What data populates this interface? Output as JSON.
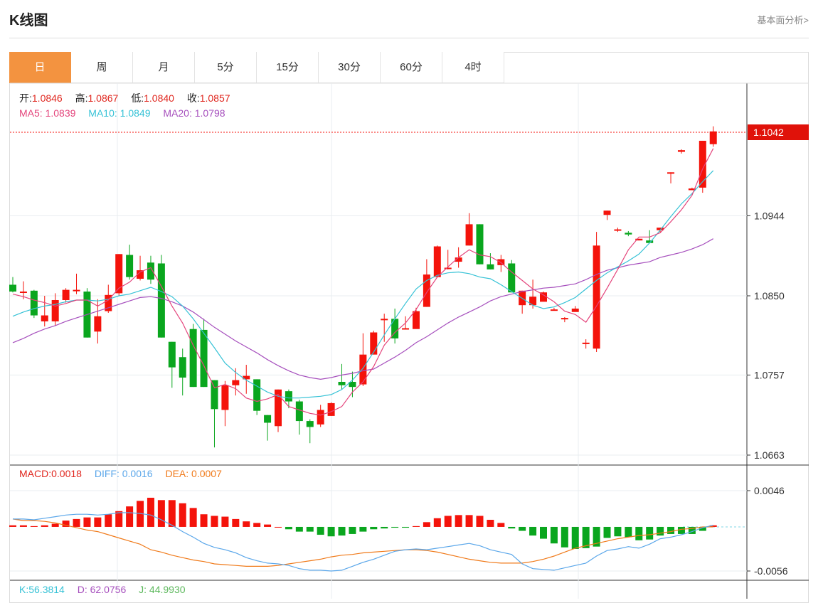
{
  "page": {
    "title": "K线图",
    "top_link": "基本面分析>"
  },
  "tabs": [
    "日",
    "周",
    "月",
    "5分",
    "15分",
    "30分",
    "60分",
    "4时"
  ],
  "active_tab": 0,
  "ohlc": {
    "open_label": "开:",
    "open": "1.0846",
    "high_label": "高:",
    "high": "1.0867",
    "low_label": "低:",
    "low": "1.0840",
    "close_label": "收:",
    "close": "1.0857"
  },
  "ma": {
    "ma5_label": "MA5:",
    "ma5": "1.0839",
    "ma10_label": "MA10:",
    "ma10": "1.0849",
    "ma20_label": "MA20:",
    "ma20": "1.0798"
  },
  "macd_info": {
    "macd_label": "MACD:",
    "macd": "0.0018",
    "diff_label": "DIFF:",
    "diff": "0.0016",
    "dea_label": "DEA:",
    "dea": "0.0007"
  },
  "kdj_info": {
    "k_label": "K:",
    "k": "56.3814",
    "d_label": "D:",
    "d": "62.0756",
    "j_label": "J:",
    "j": "44.9930"
  },
  "current_price": "1.1042",
  "colors": {
    "up": "#f4130b",
    "down": "#0aa61e",
    "ma5": "#e4457c",
    "ma10": "#36c2d6",
    "ma20": "#a64fbd",
    "diff": "#5ba7ea",
    "dea": "#f07a1a",
    "accent": "#f39340",
    "k": "#36c2d6",
    "d": "#a64fbd",
    "j": "#5cb85c"
  },
  "chart_data": {
    "type": "candlestick",
    "price_ticks": [
      "1.1042",
      "1.0944",
      "1.0850",
      "1.0757",
      "1.0663"
    ],
    "price_ylim": [
      1.0663,
      1.1042
    ],
    "macd_ticks": [
      "0.0046",
      "-0.0056"
    ],
    "macd_ylim": [
      -0.0056,
      0.0046
    ],
    "candles": [
      [
        1.0863,
        1.0855,
        1.0872,
        1.0854
      ],
      [
        1.0855,
        1.0855,
        1.0867,
        1.0846
      ],
      [
        1.0856,
        1.0827,
        1.0857,
        1.0824
      ],
      [
        1.082,
        1.0827,
        1.085,
        1.0814
      ],
      [
        1.082,
        1.0845,
        1.0853,
        1.0815
      ],
      [
        1.0845,
        1.0857,
        1.0859,
        1.0842
      ],
      [
        1.0856,
        1.0857,
        1.0876,
        1.0852
      ],
      [
        1.0855,
        1.0801,
        1.0859,
        1.0801
      ],
      [
        1.0808,
        1.0826,
        1.0846,
        1.0794
      ],
      [
        1.0832,
        1.0851,
        1.0863,
        1.083
      ],
      [
        1.0853,
        1.0899,
        1.0899,
        1.085
      ],
      [
        1.0898,
        1.0872,
        1.091,
        1.0869
      ],
      [
        1.087,
        1.088,
        1.0897,
        1.0868
      ],
      [
        1.0889,
        1.0869,
        1.0897,
        1.0864
      ],
      [
        1.0888,
        1.0801,
        1.0898,
        1.0801
      ],
      [
        1.0796,
        1.0766,
        1.0796,
        1.0742
      ],
      [
        1.0778,
        1.0754,
        1.0788,
        1.0733
      ],
      [
        1.0811,
        1.0743,
        1.0817,
        1.0743
      ],
      [
        1.081,
        1.0743,
        1.0823,
        1.0743
      ],
      [
        1.0751,
        1.0717,
        1.0751,
        1.0672
      ],
      [
        1.0716,
        1.0745,
        1.075,
        1.0697
      ],
      [
        1.0745,
        1.0751,
        1.0765,
        1.0733
      ],
      [
        1.0752,
        1.0756,
        1.0769,
        1.0735
      ],
      [
        1.0752,
        1.0715,
        1.0752,
        1.071
      ],
      [
        1.071,
        1.0701,
        1.071,
        1.068
      ],
      [
        1.0697,
        1.074,
        1.074,
        1.069
      ],
      [
        1.0738,
        1.0726,
        1.074,
        1.0718
      ],
      [
        1.0726,
        1.0703,
        1.0728,
        1.0687
      ],
      [
        1.0703,
        1.0696,
        1.0705,
        1.0677
      ],
      [
        1.0699,
        1.0716,
        1.0722,
        1.0696
      ],
      [
        1.0709,
        1.0724,
        1.0725,
        1.0709
      ],
      [
        1.0749,
        1.0745,
        1.077,
        1.074
      ],
      [
        1.0749,
        1.0743,
        1.0761,
        1.0731
      ],
      [
        1.0746,
        1.0781,
        1.0806,
        1.0744
      ],
      [
        1.0781,
        1.0807,
        1.0809,
        1.0795
      ],
      [
        1.0822,
        1.0823,
        1.0829,
        1.0796
      ],
      [
        1.0823,
        1.08,
        1.0835,
        1.0794
      ],
      [
        1.0812,
        1.0812,
        1.0826,
        1.0811
      ],
      [
        1.0811,
        1.0832,
        1.0836,
        1.0812
      ],
      [
        1.0837,
        1.0875,
        1.0893,
        1.0837
      ],
      [
        1.0872,
        1.0908,
        1.0909,
        1.0872
      ],
      [
        1.0883,
        1.0883,
        1.0904,
        1.0881
      ],
      [
        1.089,
        1.0895,
        1.0907,
        1.0883
      ],
      [
        1.0909,
        1.0934,
        1.0947,
        1.0909
      ],
      [
        1.0934,
        1.0887,
        1.0934,
        1.0887
      ],
      [
        1.0887,
        1.0881,
        1.09,
        1.0881
      ],
      [
        1.0886,
        1.0893,
        1.0898,
        1.0878
      ],
      [
        1.0888,
        1.0854,
        1.0892,
        1.0854
      ],
      [
        1.0839,
        1.0856,
        1.0856,
        1.0829
      ],
      [
        1.0839,
        1.0849,
        1.0869,
        1.0835
      ],
      [
        1.0843,
        1.0854,
        1.0855,
        1.0846
      ],
      [
        1.0834,
        1.0834,
        1.0836,
        1.0833
      ],
      [
        1.0823,
        1.0824,
        1.0825,
        1.0819
      ],
      [
        1.0831,
        1.0835,
        1.0838,
        1.0832
      ],
      [
        1.0794,
        1.0795,
        1.0799,
        1.0788
      ],
      [
        1.0788,
        1.0909,
        1.0925,
        1.0784
      ],
      [
        1.0945,
        1.095,
        1.095,
        1.0939
      ],
      [
        1.0927,
        1.0928,
        1.093,
        1.0925
      ],
      [
        1.0924,
        1.0922,
        1.0926,
        1.092
      ],
      [
        1.0915,
        1.0917,
        1.0917,
        1.0915
      ],
      [
        1.0915,
        1.0912,
        1.0927,
        1.0912
      ],
      [
        1.0927,
        1.093,
        1.093,
        1.0924
      ],
      [
        1.0994,
        1.0995,
        1.0995,
        1.0982
      ],
      [
        1.1019,
        1.1021,
        1.1022,
        1.1017
      ],
      [
        1.0974,
        1.0976,
        1.0977,
        1.0974
      ],
      [
        1.0977,
        1.1032,
        1.1032,
        1.0971
      ],
      [
        1.1028,
        1.1043,
        1.1049,
        1.1025
      ]
    ],
    "ma5": [
      1.0852,
      1.0849,
      1.0845,
      1.0842,
      1.0838,
      1.0841,
      1.0845,
      1.0845,
      1.0838,
      1.0845,
      1.0859,
      1.0866,
      1.0878,
      1.0883,
      1.0861,
      1.0838,
      1.0818,
      1.0792,
      1.0768,
      1.0742,
      1.0746,
      1.0741,
      1.073,
      1.0726,
      1.0729,
      1.0734,
      1.072,
      1.0716,
      1.0712,
      1.071,
      1.0714,
      1.072,
      1.0737,
      1.0749,
      1.0767,
      1.0792,
      1.0807,
      1.0818,
      1.0834,
      1.0854,
      1.0872,
      1.0884,
      1.0895,
      1.0904,
      1.0898,
      1.0896,
      1.0889,
      1.0878,
      1.0868,
      1.0858,
      1.0851,
      1.0843,
      1.0832,
      1.0828,
      1.0819,
      1.0838,
      1.0859,
      1.0881,
      1.0904,
      1.0919,
      1.0919,
      1.0924,
      1.0937,
      1.0951,
      1.0968,
      1.0999,
      1.1023
    ],
    "ma10": [
      1.0826,
      1.0831,
      1.0835,
      1.0838,
      1.084,
      1.0843,
      1.0845,
      1.0845,
      1.0844,
      1.0846,
      1.085,
      1.0852,
      1.0856,
      1.086,
      1.0855,
      1.0849,
      1.0838,
      1.0823,
      1.0806,
      1.0789,
      1.0771,
      1.076,
      1.0751,
      1.0744,
      1.0737,
      1.0732,
      1.073,
      1.073,
      1.0731,
      1.0732,
      1.0734,
      1.074,
      1.0751,
      1.0765,
      1.0784,
      1.0804,
      1.0823,
      1.0841,
      1.0858,
      1.0868,
      1.0874,
      1.0877,
      1.0878,
      1.0876,
      1.0872,
      1.087,
      1.0863,
      1.0855,
      1.0847,
      1.0839,
      1.0835,
      1.0837,
      1.0842,
      1.0848,
      1.0858,
      1.0868,
      1.0877,
      1.0884,
      1.0891,
      1.0899,
      1.0912,
      1.0927,
      1.0943,
      1.0958,
      1.097,
      1.0984,
      1.0997
    ],
    "ma20": [
      1.0795,
      1.08,
      1.0806,
      1.0811,
      1.0815,
      1.082,
      1.0824,
      1.0828,
      1.0832,
      1.0836,
      1.084,
      1.0844,
      1.0848,
      1.0849,
      1.0847,
      1.0843,
      1.0838,
      1.0831,
      1.0822,
      1.0813,
      1.0805,
      1.0797,
      1.079,
      1.0783,
      1.0775,
      1.0768,
      1.0762,
      1.0757,
      1.0754,
      1.0752,
      1.0754,
      1.0757,
      1.0759,
      1.0762,
      1.0764,
      1.0771,
      1.0778,
      1.0786,
      1.0795,
      1.0802,
      1.081,
      1.0818,
      1.0825,
      1.0831,
      1.0837,
      1.0844,
      1.0849,
      1.0852,
      1.0855,
      1.0857,
      1.0859,
      1.086,
      1.0862,
      1.0864,
      1.0869,
      1.0875,
      1.088,
      1.0883,
      1.0886,
      1.0888,
      1.089,
      1.0895,
      1.0898,
      1.0901,
      1.0905,
      1.091,
      1.0917
    ],
    "macd_hist": [
      0.0002,
      0.0002,
      0.0001,
      0.0002,
      0.0004,
      0.0008,
      0.001,
      0.0012,
      0.0012,
      0.0016,
      0.002,
      0.0026,
      0.0033,
      0.0037,
      0.0034,
      0.0034,
      0.003,
      0.0024,
      0.0016,
      0.0014,
      0.0013,
      0.001,
      0.0007,
      0.0005,
      0.0003,
      0.0,
      -0.0003,
      -0.0006,
      -0.0006,
      -0.001,
      -0.0012,
      -0.0011,
      -0.0009,
      -0.0006,
      -0.0003,
      -0.0002,
      -0.0001,
      -0.0001,
      0.0001,
      0.0006,
      0.0011,
      0.0014,
      0.0015,
      0.0015,
      0.0014,
      0.0009,
      0.0005,
      -0.0002,
      -0.0005,
      -0.0011,
      -0.0015,
      -0.0021,
      -0.0026,
      -0.0028,
      -0.0027,
      -0.0025,
      -0.0014,
      -0.0012,
      -0.0013,
      -0.0017,
      -0.0016,
      -0.0011,
      -0.0009,
      -0.0009,
      -0.0009,
      -0.0005,
      0.0002
    ],
    "diff": [
      0.001,
      0.001,
      0.0009,
      0.0011,
      0.0013,
      0.0015,
      0.0016,
      0.0016,
      0.0015,
      0.0016,
      0.0018,
      0.0018,
      0.0017,
      0.0015,
      0.0009,
      0.0002,
      -0.0006,
      -0.0013,
      -0.0021,
      -0.0026,
      -0.0029,
      -0.0033,
      -0.0039,
      -0.0043,
      -0.0046,
      -0.0047,
      -0.0049,
      -0.0053,
      -0.0055,
      -0.0055,
      -0.0056,
      -0.0055,
      -0.005,
      -0.0045,
      -0.0041,
      -0.0036,
      -0.0031,
      -0.0029,
      -0.0028,
      -0.0029,
      -0.0027,
      -0.0025,
      -0.0023,
      -0.0021,
      -0.0024,
      -0.0029,
      -0.0032,
      -0.0035,
      -0.0047,
      -0.0053,
      -0.0054,
      -0.0055,
      -0.0052,
      -0.0049,
      -0.0046,
      -0.0037,
      -0.003,
      -0.0028,
      -0.0025,
      -0.0027,
      -0.0022,
      -0.0015,
      -0.0013,
      -0.001,
      -0.0006,
      -0.0001,
      0.0002
    ],
    "dea": [
      0.001,
      0.0008,
      0.0008,
      0.0007,
      0.0005,
      0.0002,
      -0.0001,
      -0.0004,
      -0.0006,
      -0.001,
      -0.0014,
      -0.0018,
      -0.0022,
      -0.0029,
      -0.0032,
      -0.0036,
      -0.0039,
      -0.0042,
      -0.0044,
      -0.0047,
      -0.0048,
      -0.0049,
      -0.005,
      -0.005,
      -0.005,
      -0.0049,
      -0.0047,
      -0.0045,
      -0.0043,
      -0.0041,
      -0.0038,
      -0.0036,
      -0.0035,
      -0.0033,
      -0.0032,
      -0.0031,
      -0.003,
      -0.0029,
      -0.0029,
      -0.003,
      -0.0032,
      -0.0035,
      -0.0038,
      -0.0041,
      -0.0043,
      -0.0045,
      -0.0046,
      -0.0046,
      -0.0046,
      -0.0044,
      -0.0041,
      -0.0037,
      -0.0032,
      -0.0027,
      -0.0024,
      -0.0021,
      -0.0018,
      -0.0015,
      -0.0013,
      -0.0011,
      -0.001,
      -0.0008,
      -0.0006,
      -0.0003,
      -0.0002,
      0.0,
      0.0
    ]
  }
}
